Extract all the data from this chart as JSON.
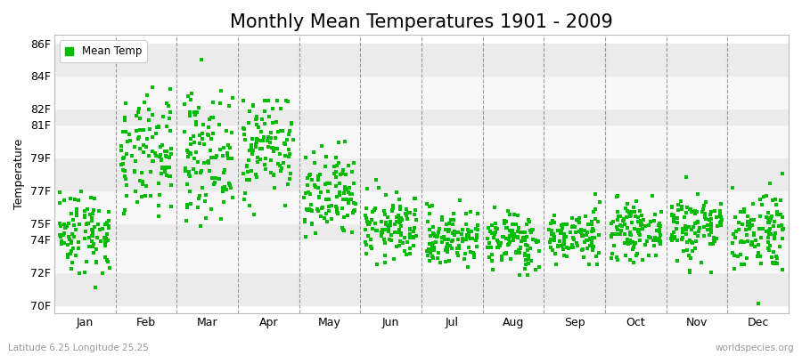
{
  "title": "Monthly Mean Temperatures 1901 - 2009",
  "ylabel": "Temperature",
  "xlabel_labels": [
    "Jan",
    "Feb",
    "Mar",
    "Apr",
    "May",
    "Jun",
    "Jul",
    "Aug",
    "Sep",
    "Oct",
    "Nov",
    "Dec"
  ],
  "ytick_labels": [
    "70F",
    "72F",
    "74F",
    "75F",
    "77F",
    "79F",
    "81F",
    "82F",
    "84F",
    "86F"
  ],
  "ytick_values": [
    70,
    72,
    74,
    75,
    77,
    79,
    81,
    82,
    84,
    86
  ],
  "ylim": [
    69.5,
    86.5
  ],
  "dot_color": "#00bb00",
  "dot_size": 7,
  "background_color": "#ffffff",
  "plot_bg_color": "#ffffff",
  "stripe_color_a": "#ebebeb",
  "stripe_color_b": "#f8f8f8",
  "grid_color": "#cccccc",
  "vline_color": "#777777",
  "legend_label": "Mean Temp",
  "subtitle_left": "Latitude 6.25 Longitude 25.25",
  "subtitle_right": "worldspecies.org",
  "title_fontsize": 15,
  "label_fontsize": 9,
  "axis_fontsize": 9,
  "num_years": 109,
  "seed": 42,
  "monthly_means": [
    74.5,
    79.0,
    79.2,
    79.8,
    76.5,
    74.7,
    74.1,
    73.9,
    74.2,
    74.5,
    74.8,
    74.6
  ],
  "monthly_stds": [
    1.3,
    1.8,
    1.9,
    1.6,
    1.4,
    1.0,
    0.9,
    0.9,
    0.8,
    0.8,
    1.1,
    1.3
  ],
  "monthly_mins": [
    70.0,
    72.0,
    74.0,
    74.5,
    74.0,
    71.5,
    71.5,
    71.2,
    72.5,
    72.5,
    72.0,
    70.0
  ],
  "monthly_maxs": [
    77.5,
    83.5,
    85.0,
    82.5,
    80.0,
    79.5,
    77.5,
    77.5,
    77.0,
    77.0,
    80.5,
    79.5
  ]
}
